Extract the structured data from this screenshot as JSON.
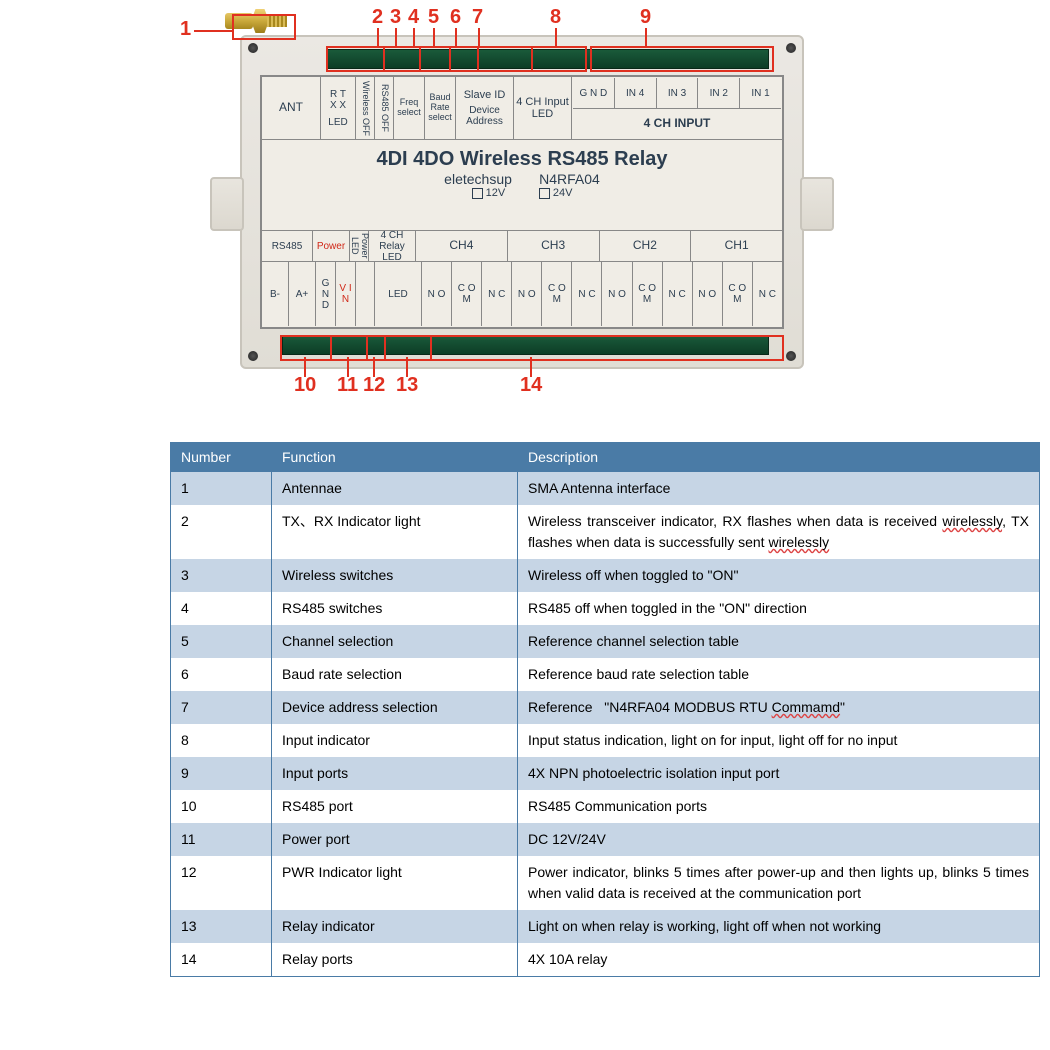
{
  "device": {
    "title": "4DI 4DO Wireless RS485 Relay",
    "brand": "eletechsup",
    "model": "N4RFA04",
    "volt12": "12V",
    "volt24": "24V",
    "topRow": {
      "ant": "ANT",
      "rxtx_top": "R  T",
      "rxtx_mid": "X  X",
      "rxtx_bot": "LED",
      "wireless_off": "Wireless OFF",
      "rs485_off": "RS485 OFF",
      "freq": "Freq select",
      "baud": "Baud Rate select",
      "slave": "Slave ID",
      "device_addr": "Device Address",
      "ch_input": "4 CH Input LED",
      "gnd": "G N D",
      "in4": "IN 4",
      "in3": "IN 3",
      "in2": "IN 2",
      "in1": "IN 1",
      "ch_input_label": "4 CH INPUT"
    },
    "bottomRow": {
      "rs485": "RS485",
      "b_minus": "B-",
      "a_plus": "A+",
      "power": "Power",
      "gnd": "G N D",
      "vin": "V I N",
      "power_led": "Power LED",
      "relay_led": "4 CH Relay LED",
      "ch4": "CH4",
      "ch3": "CH3",
      "ch2": "CH2",
      "ch1": "CH1",
      "no": "N O",
      "com": "C O M",
      "nc": "N C"
    }
  },
  "callouts": {
    "c1": "1",
    "c2": "2",
    "c3": "3",
    "c4": "4",
    "c5": "5",
    "c6": "6",
    "c7": "7",
    "c8": "8",
    "c9": "9",
    "c10": "10",
    "c11": "11",
    "c12": "12",
    "c13": "13",
    "c14": "14"
  },
  "table": {
    "headers": {
      "num": "Number",
      "func": "Function",
      "desc": "Description"
    },
    "rows": [
      {
        "num": "1",
        "func": "Antennae",
        "desc": "SMA Antenna interface",
        "alt": true
      },
      {
        "num": "2",
        "func": "TX、RX Indicator light",
        "desc": "Wireless transceiver indicator, RX flashes when data is received <span class='underline-wavy'>wirelessly</span>, TX flashes when data is successfully sent <span class='underline-wavy'>wirelessly</span>",
        "alt": false,
        "just": true
      },
      {
        "num": "3",
        "func": "Wireless switches",
        "desc": "Wireless off when toggled to \"ON\"",
        "alt": true
      },
      {
        "num": "4",
        "func": "RS485 switches",
        "desc": "RS485 off when toggled in the \"ON\" direction",
        "alt": false
      },
      {
        "num": "5",
        "func": "Channel selection",
        "desc": "Reference channel selection table",
        "alt": true
      },
      {
        "num": "6",
        "func": "Baud rate selection",
        "desc": "Reference baud rate selection table",
        "alt": false
      },
      {
        "num": "7",
        "func": "Device address selection",
        "desc": "Reference&nbsp;&nbsp;&nbsp;\"N4RFA04 MODBUS RTU <span class='underline-wavy'>Commamd</span>\"",
        "alt": true
      },
      {
        "num": "8",
        "func": "Input indicator",
        "desc": "Input status indication, light on for input, light off for no input",
        "alt": false
      },
      {
        "num": "9",
        "func": "Input ports",
        "desc": "4X NPN photoelectric isolation input port",
        "alt": true
      },
      {
        "num": "10",
        "func": "RS485 port",
        "desc": "RS485 Communication ports",
        "alt": false
      },
      {
        "num": "11",
        "func": "Power port",
        "desc": "DC 12V/24V",
        "alt": true
      },
      {
        "num": "12",
        "func": "PWR Indicator light",
        "desc": "Power indicator, blinks 5 times after power-up and then lights up, blinks 5 times when valid data is received at the communication port",
        "alt": false,
        "just": true
      },
      {
        "num": "13",
        "func": "Relay indicator",
        "desc": "Light on when relay is working, light off when not working",
        "alt": true,
        "just": true
      },
      {
        "num": "14",
        "func": "Relay ports",
        "desc": "4X 10A relay",
        "alt": false
      }
    ]
  },
  "colors": {
    "header_bg": "#4a7ba6",
    "alt_bg": "#c6d5e5",
    "callout": "#e03020"
  }
}
